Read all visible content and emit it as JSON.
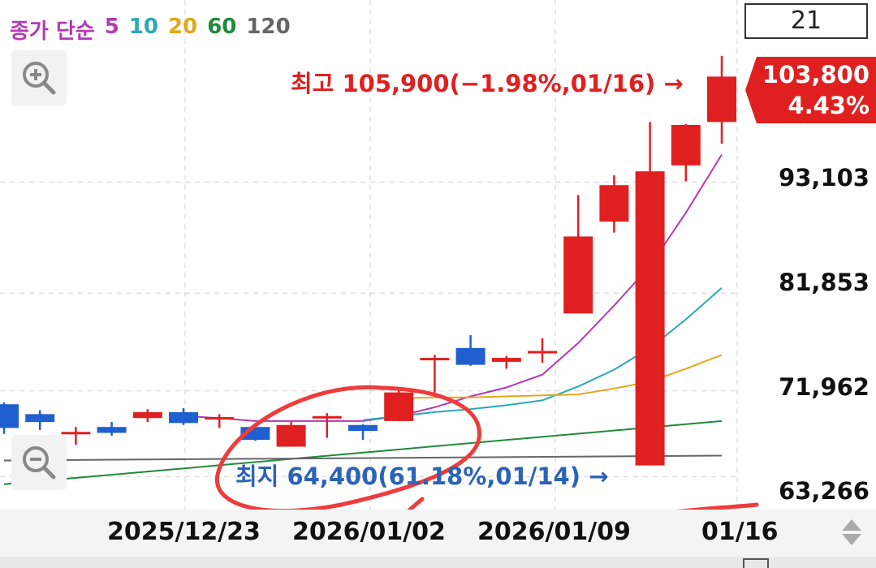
{
  "ma_legend": {
    "label": "종가 단순",
    "periods": [
      {
        "text": "5",
        "color": "#b538b5"
      },
      {
        "text": "10",
        "color": "#2aaab5"
      },
      {
        "text": "20",
        "color": "#e0a81a"
      },
      {
        "text": "60",
        "color": "#1f8a3a"
      },
      {
        "text": "120",
        "color": "#666666"
      }
    ],
    "label_color": "#b538b5"
  },
  "period_box": "21",
  "price_tag": {
    "price": "103,800",
    "change": "4.43%"
  },
  "high_label": "최고 105,900(−1.98%,01/16) →",
  "low_label": "최지 64,400(61.18%,01/14) →",
  "chart_data": {
    "type": "candlestick",
    "y_ticks": [
      "93,103",
      "81,853",
      "71,962",
      "63,266"
    ],
    "y_tick_values": [
      93103,
      81853,
      71962,
      63266
    ],
    "x_ticks": [
      "2025/12/23",
      "2026/01/02",
      "2026/01/09",
      "01/16"
    ],
    "ylim": [
      59930,
      111560
    ],
    "high": 105900,
    "low": 64400,
    "candles": [
      {
        "o": 70600,
        "h": 70800,
        "l": 67600,
        "c": 68200
      },
      {
        "o": 69600,
        "h": 70000,
        "l": 68000,
        "c": 68800
      },
      {
        "o": 67600,
        "h": 68300,
        "l": 66500,
        "c": 67800
      },
      {
        "o": 68300,
        "h": 68800,
        "l": 67400,
        "c": 67700
      },
      {
        "o": 69200,
        "h": 70100,
        "l": 68800,
        "c": 69800
      },
      {
        "o": 69800,
        "h": 70200,
        "l": 68500,
        "c": 68700
      },
      {
        "o": 69300,
        "h": 69600,
        "l": 68200,
        "c": 69300
      },
      {
        "o": 68300,
        "h": 68400,
        "l": 66900,
        "c": 67000
      },
      {
        "o": 66300,
        "h": 68800,
        "l": 66300,
        "c": 68500
      },
      {
        "o": 69400,
        "h": 69700,
        "l": 67200,
        "c": 69400
      },
      {
        "o": 68500,
        "h": 68600,
        "l": 67000,
        "c": 67900
      },
      {
        "o": 68900,
        "h": 72100,
        "l": 68900,
        "c": 71800
      },
      {
        "o": 75300,
        "h": 75600,
        "l": 71500,
        "c": 75300
      },
      {
        "o": 76300,
        "h": 77600,
        "l": 74500,
        "c": 74600
      },
      {
        "o": 74900,
        "h": 75500,
        "l": 74200,
        "c": 75300
      },
      {
        "o": 75800,
        "h": 77300,
        "l": 74800,
        "c": 76000
      },
      {
        "o": 79800,
        "h": 91800,
        "l": 79800,
        "c": 87600
      },
      {
        "o": 89100,
        "h": 93800,
        "l": 88000,
        "c": 92800
      },
      {
        "o": 64400,
        "h": 99200,
        "l": 64400,
        "c": 94200
      },
      {
        "o": 94800,
        "h": 99000,
        "l": 93200,
        "c": 98900
      },
      {
        "o": 99200,
        "h": 105900,
        "l": 97000,
        "c": 103800
      }
    ],
    "ma": [
      {
        "name": "5",
        "color": "#b538b5",
        "values": [
          null,
          null,
          null,
          null,
          null,
          69400,
          69200,
          68900,
          68900,
          68900,
          68900,
          69400,
          70300,
          71400,
          72300,
          73600,
          76800,
          80600,
          84600,
          90000,
          95900
        ]
      },
      {
        "name": "10",
        "color": "#2aaab5",
        "values": [
          null,
          null,
          null,
          null,
          null,
          null,
          null,
          null,
          null,
          null,
          69000,
          69400,
          69800,
          70100,
          70500,
          71000,
          72400,
          74100,
          76300,
          79200,
          82400
        ]
      },
      {
        "name": "20",
        "color": "#e0a81a",
        "values": [
          null,
          null,
          null,
          null,
          null,
          null,
          null,
          null,
          null,
          null,
          null,
          71200,
          71300,
          71300,
          71400,
          71500,
          71600,
          72200,
          72900,
          74200,
          75600
        ]
      },
      {
        "name": "60",
        "color": "#1f8a3a",
        "values": [
          62500,
          null,
          null,
          null,
          null,
          null,
          null,
          null,
          null,
          null,
          null,
          null,
          null,
          null,
          null,
          null,
          null,
          null,
          null,
          null,
          68900
        ]
      },
      {
        "name": "120",
        "color": "#666666",
        "values": [
          64900,
          null,
          null,
          null,
          null,
          null,
          null,
          null,
          null,
          null,
          null,
          null,
          null,
          null,
          null,
          null,
          null,
          null,
          null,
          null,
          65400
        ]
      }
    ],
    "up_color": "#e02020",
    "down_color": "#1f5fd0"
  }
}
